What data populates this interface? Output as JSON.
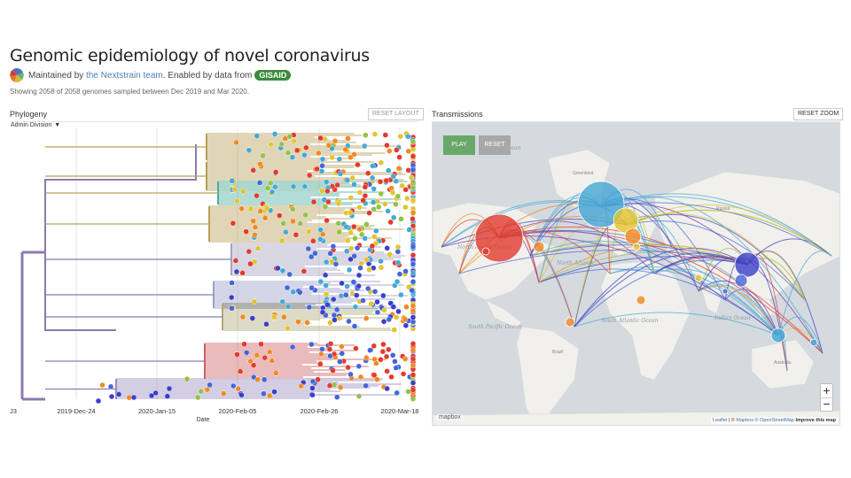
{
  "header": {
    "title": "Genomic epidemiology of novel coronavirus",
    "maintained_prefix": "Maintained by ",
    "team_link": "the Nextstrain team",
    "enabled_text": ". Enabled by data from",
    "gisaid": "GISAID",
    "summary": "Showing 2058 of 2058 genomes sampled between Dec 2019 and Mar 2020."
  },
  "phylogeny": {
    "title": "Phylogeny",
    "reset_layout": "RESET LAYOUT",
    "color_by": "Admin Division",
    "axis_ticks": [
      "J3",
      "2019-Dec-24",
      "2020-Jan-15",
      "2020-Feb-05",
      "2020-Feb-26",
      "2020-Mar-18"
    ],
    "axis_label": "Date"
  },
  "transmissions": {
    "title": "Transmissions",
    "reset_zoom": "RESET ZOOM",
    "play": "PLAY",
    "reset": "RESET",
    "zoom_in": "+",
    "zoom_out": "−",
    "mapbox_logo": "mapbox",
    "attribution": {
      "leaflet": "Leaflet",
      "separator": " | © ",
      "mapbox": "Mapbox",
      "osm": "© OpenStreetMap",
      "improve": "Improve this map"
    },
    "ocean_labels": [
      "Arctic Ocean",
      "North Pacific Ocean",
      "North Atlantic",
      "South Pacific Ocean",
      "South Atlantic Ocean",
      "Indian Ocean"
    ],
    "land_labels": [
      "Greenland",
      "Russia",
      "China",
      "Brazil",
      "Australia"
    ]
  },
  "colors": {
    "root_purple": "#8a7cb0",
    "red": "#e23b2e",
    "orange": "#f08a24",
    "yellow": "#e3c431",
    "olive": "#b7a057",
    "green": "#93c24a",
    "teal": "#4ab0a0",
    "cyan": "#45a8d6",
    "blue": "#4466d8",
    "indigo": "#3b3fc9",
    "purple": "#6a3db0",
    "map_water": "#d5dadf",
    "map_land": "#f1f0ec"
  }
}
